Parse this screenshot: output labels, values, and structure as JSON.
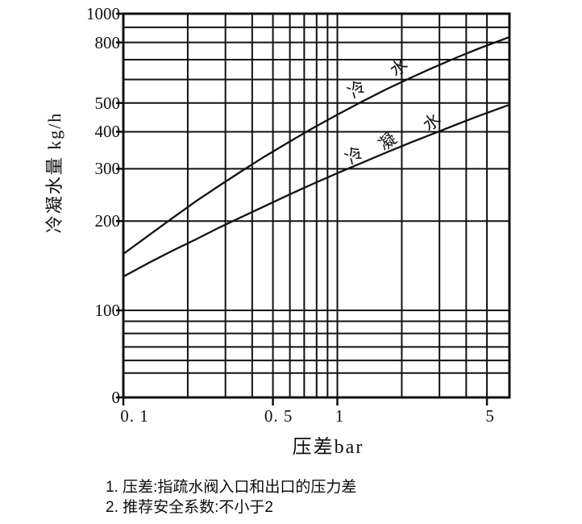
{
  "chart_data": {
    "type": "line",
    "title": "",
    "xlabel": "压差bar",
    "ylabel": "冷凝水量 kg/h",
    "x_scale": "log",
    "y_scale": "log",
    "xlim": [
      0.1,
      6.3
    ],
    "ylim": [
      50,
      1000
    ],
    "grid": true,
    "legend_position": "on-curve",
    "x_ticks": [
      {
        "value": 0.1,
        "label": "0. 1"
      },
      {
        "value": 0.5,
        "label": "0. 5"
      },
      {
        "value": 1,
        "label": "1"
      },
      {
        "value": 5,
        "label": "5"
      }
    ],
    "y_ticks": [
      {
        "value": 1000,
        "label": "1000"
      },
      {
        "value": 800,
        "label": "800"
      },
      {
        "value": 500,
        "label": "500"
      },
      {
        "value": 400,
        "label": "400"
      },
      {
        "value": 300,
        "label": "300"
      },
      {
        "value": 200,
        "label": "200"
      },
      {
        "value": 100,
        "label": "100"
      },
      {
        "value": 0,
        "label": "0"
      }
    ],
    "x_gridlines": [
      0.2,
      0.3,
      0.4,
      0.5,
      0.6,
      0.7,
      0.8,
      0.9,
      1,
      2,
      3,
      4,
      5
    ],
    "y_gridlines": [
      900,
      800,
      700,
      600,
      500,
      400,
      300,
      200,
      100
    ],
    "y_minor_gridlines": [
      90,
      80,
      70,
      60,
      55
    ],
    "series": [
      {
        "name": "冷水",
        "points": [
          [
            0.1,
            155
          ],
          [
            0.13,
            178
          ],
          [
            0.17,
            205
          ],
          [
            0.22,
            234
          ],
          [
            0.28,
            263
          ],
          [
            0.36,
            296
          ],
          [
            0.46,
            331
          ],
          [
            0.6,
            371
          ],
          [
            0.77,
            412
          ],
          [
            1,
            457
          ],
          [
            1.3,
            505
          ],
          [
            1.7,
            557
          ],
          [
            2.2,
            608
          ],
          [
            2.8,
            658
          ],
          [
            3.6,
            711
          ],
          [
            4.6,
            764
          ],
          [
            6.3,
            832
          ]
        ]
      },
      {
        "name": "冷凝水",
        "points": [
          [
            0.1,
            130
          ],
          [
            0.13,
            144
          ],
          [
            0.17,
            159
          ],
          [
            0.22,
            174
          ],
          [
            0.28,
            190
          ],
          [
            0.36,
            207
          ],
          [
            0.46,
            225
          ],
          [
            0.6,
            246
          ],
          [
            0.77,
            267
          ],
          [
            1,
            290
          ],
          [
            1.3,
            314
          ],
          [
            1.7,
            341
          ],
          [
            2.2,
            368
          ],
          [
            2.8,
            394
          ],
          [
            3.6,
            423
          ],
          [
            4.6,
            453
          ],
          [
            6.3,
            492
          ]
        ]
      }
    ],
    "notes": [
      "1. 压差:指疏水阀入口和出口的压力差",
      "2. 推荐安全系数:不小于2"
    ]
  },
  "colors": {
    "ink": "#111111",
    "background": "#ffffff"
  }
}
